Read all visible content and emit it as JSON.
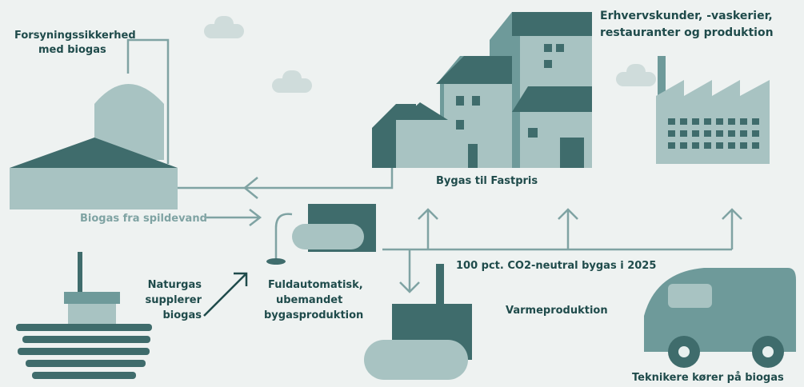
{
  "nodes": [
    {
      "lines": [
        "Forsyningssikkerhed",
        "med biogas"
      ]
    },
    {
      "lines": [
        "Erhvervskunder, -vaskerier,",
        "restauranter og produktion"
      ]
    },
    {
      "lines": [
        "Bygas til Fastpris"
      ]
    },
    {
      "lines": [
        "Biogas fra spildevand"
      ]
    },
    {
      "lines": [
        "100 pct. CO2-neutral bygas i 2025"
      ]
    },
    {
      "lines": [
        "Naturgas",
        "supplerer",
        "biogas"
      ]
    },
    {
      "lines": [
        "Fuldautomatisk,",
        "ubemandet",
        "bygasproduktion"
      ]
    },
    {
      "lines": [
        "Varmeproduktion"
      ]
    },
    {
      "lines": [
        "Teknikere kører på biogas"
      ]
    }
  ]
}
